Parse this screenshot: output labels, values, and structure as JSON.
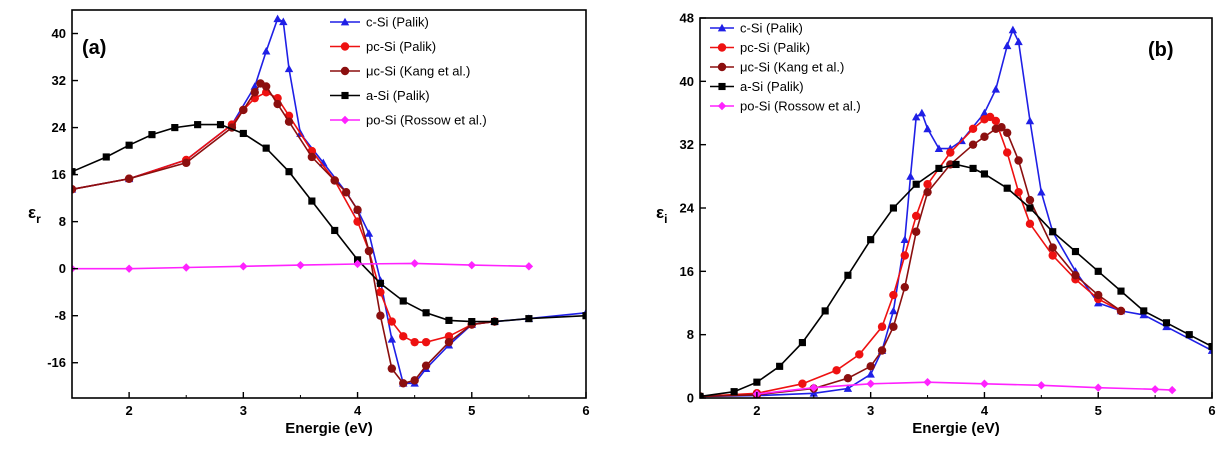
{
  "colors": {
    "c_si": "#1f1fe6",
    "pc_si": "#ee1111",
    "uc_si": "#8b0f0f",
    "a_si": "#000000",
    "po_si": "#ff22ff"
  },
  "chart_data": [
    {
      "type": "line",
      "panel_label": "(a)",
      "xlabel": "Energie (eV)",
      "ylabel_main": "ε",
      "ylabel_sub": "r",
      "xlim": [
        1.5,
        6
      ],
      "ylim": [
        -22,
        44
      ],
      "x_ticks": [
        "2",
        "3",
        "4",
        "5",
        "6"
      ],
      "y_ticks": [
        "-16",
        "-8",
        "0",
        "8",
        "16",
        "24",
        "32",
        "40"
      ],
      "legend": {
        "position": "top-right"
      },
      "series": [
        {
          "name": "c-Si (Palik)",
          "color": "#1f1fe6",
          "marker": "triangle",
          "x": [
            1.5,
            2.0,
            2.5,
            2.9,
            3.1,
            3.2,
            3.3,
            3.35,
            3.4,
            3.5,
            3.7,
            3.9,
            4.0,
            4.1,
            4.2,
            4.3,
            4.4,
            4.5,
            4.6,
            4.8,
            5.0,
            5.2,
            5.5,
            6.0
          ],
          "y": [
            13.5,
            15.3,
            18.5,
            24.5,
            31,
            37,
            42.5,
            42,
            34,
            23,
            18,
            13,
            10,
            6,
            -2,
            -12,
            -19.5,
            -19.5,
            -17,
            -13,
            -9.5,
            -9,
            -8.5,
            -7.5
          ]
        },
        {
          "name": "pc-Si (Palik)",
          "color": "#ee1111",
          "marker": "circle",
          "x": [
            1.5,
            2.0,
            2.5,
            2.9,
            3.0,
            3.1,
            3.2,
            3.3,
            3.4,
            3.6,
            3.8,
            4.0,
            4.1,
            4.2,
            4.3,
            4.4,
            4.5,
            4.6,
            4.8,
            5.0,
            5.2
          ],
          "y": [
            13.5,
            15.3,
            18.5,
            24.5,
            27,
            29,
            30,
            29,
            26,
            20,
            15,
            8,
            3,
            -4,
            -9,
            -11.5,
            -12.5,
            -12.5,
            -11.5,
            -9.5,
            -9
          ]
        },
        {
          "name": "μc-Si (Kang et al.)",
          "color": "#8b0f0f",
          "marker": "circle",
          "x": [
            1.5,
            2.0,
            2.5,
            2.9,
            3.0,
            3.1,
            3.15,
            3.2,
            3.3,
            3.4,
            3.6,
            3.8,
            3.9,
            4.0,
            4.1,
            4.2,
            4.3,
            4.4,
            4.5,
            4.6,
            4.8,
            5.0,
            5.2
          ],
          "y": [
            13.5,
            15.3,
            18,
            24,
            27,
            30,
            31.5,
            31,
            28,
            25,
            19,
            15,
            13,
            10,
            3,
            -8,
            -17,
            -19.5,
            -19,
            -16.5,
            -12.5,
            -9.5,
            -9
          ]
        },
        {
          "name": "a-Si (Palik)",
          "color": "#000000",
          "marker": "square",
          "x": [
            1.5,
            1.8,
            2.0,
            2.2,
            2.4,
            2.6,
            2.8,
            3.0,
            3.2,
            3.4,
            3.6,
            3.8,
            4.0,
            4.2,
            4.4,
            4.6,
            4.8,
            5.0,
            5.2,
            5.5,
            6.0
          ],
          "y": [
            16.5,
            19,
            21,
            22.8,
            24,
            24.5,
            24.5,
            23,
            20.5,
            16.5,
            11.5,
            6.5,
            1.5,
            -2.5,
            -5.5,
            -7.5,
            -8.8,
            -9,
            -9,
            -8.5,
            -8
          ]
        },
        {
          "name": "po-Si (Rossow et al.)",
          "color": "#ff22ff",
          "marker": "diamond",
          "x": [
            1.5,
            2.0,
            2.5,
            3.0,
            3.5,
            4.0,
            4.5,
            5.0,
            5.5
          ],
          "y": [
            0,
            0,
            0.2,
            0.4,
            0.6,
            0.8,
            0.9,
            0.6,
            0.4
          ]
        }
      ]
    },
    {
      "type": "line",
      "panel_label": "(b)",
      "xlabel": "Energie (eV)",
      "ylabel_main": "ε",
      "ylabel_sub": "i",
      "xlim": [
        1.5,
        6
      ],
      "ylim": [
        0,
        48
      ],
      "x_ticks": [
        "2",
        "3",
        "4",
        "5",
        "6"
      ],
      "y_ticks": [
        "0",
        "8",
        "16",
        "24",
        "32",
        "40",
        "48"
      ],
      "legend": {
        "position": "top-left"
      },
      "series": [
        {
          "name": "c-Si (Palik)",
          "color": "#1f1fe6",
          "marker": "triangle",
          "x": [
            1.5,
            2.0,
            2.5,
            2.8,
            3.0,
            3.1,
            3.2,
            3.3,
            3.35,
            3.4,
            3.45,
            3.5,
            3.6,
            3.7,
            3.8,
            4.0,
            4.1,
            4.2,
            4.25,
            4.3,
            4.4,
            4.5,
            4.6,
            4.8,
            5.0,
            5.2,
            5.4,
            5.6,
            6.0
          ],
          "y": [
            0.2,
            0.3,
            0.6,
            1.2,
            3,
            6,
            11,
            20,
            28,
            35.5,
            36,
            34,
            31.5,
            31.5,
            32.5,
            36,
            39,
            44.5,
            46.5,
            45,
            35,
            26,
            21,
            16,
            12,
            11,
            10.5,
            9,
            6
          ]
        },
        {
          "name": "pc-Si (Palik)",
          "color": "#ee1111",
          "marker": "circle",
          "x": [
            1.5,
            2.0,
            2.4,
            2.7,
            2.9,
            3.1,
            3.2,
            3.3,
            3.4,
            3.5,
            3.7,
            3.9,
            4.0,
            4.05,
            4.1,
            4.2,
            4.3,
            4.4,
            4.6,
            4.8,
            5.0,
            5.2
          ],
          "y": [
            0.2,
            0.6,
            1.8,
            3.5,
            5.5,
            9,
            13,
            18,
            23,
            27,
            31,
            34,
            35.2,
            35.5,
            35,
            31,
            26,
            22,
            18,
            15,
            12.5,
            11
          ]
        },
        {
          "name": "μc-Si (Kang et al.)",
          "color": "#8b0f0f",
          "marker": "circle",
          "x": [
            1.5,
            2.0,
            2.5,
            2.8,
            3.0,
            3.1,
            3.2,
            3.3,
            3.4,
            3.5,
            3.7,
            3.9,
            4.0,
            4.1,
            4.15,
            4.2,
            4.3,
            4.4,
            4.6,
            4.8,
            5.0,
            5.2
          ],
          "y": [
            0.2,
            0.4,
            1.2,
            2.5,
            4,
            6,
            9,
            14,
            21,
            26,
            29.5,
            32,
            33,
            34,
            34.2,
            33.5,
            30,
            25,
            19,
            15.5,
            13,
            11
          ]
        },
        {
          "name": "a-Si (Palik)",
          "color": "#000000",
          "marker": "square",
          "x": [
            1.5,
            1.8,
            2.0,
            2.2,
            2.4,
            2.6,
            2.8,
            3.0,
            3.2,
            3.4,
            3.6,
            3.75,
            3.9,
            4.0,
            4.2,
            4.4,
            4.6,
            4.8,
            5.0,
            5.2,
            5.4,
            5.6,
            5.8,
            6.0
          ],
          "y": [
            0.2,
            0.8,
            2,
            4,
            7,
            11,
            15.5,
            20,
            24,
            27,
            29,
            29.5,
            29,
            28.3,
            26.5,
            24,
            21,
            18.5,
            16,
            13.5,
            11,
            9.5,
            8,
            6.5
          ]
        },
        {
          "name": "po-Si (Rossow et al.)",
          "color": "#ff22ff",
          "marker": "diamond",
          "x": [
            2.0,
            2.5,
            3.0,
            3.5,
            4.0,
            4.5,
            5.0,
            5.5,
            5.65
          ],
          "y": [
            0.5,
            1.3,
            1.8,
            2.0,
            1.8,
            1.6,
            1.3,
            1.1,
            1.0
          ]
        }
      ]
    }
  ]
}
